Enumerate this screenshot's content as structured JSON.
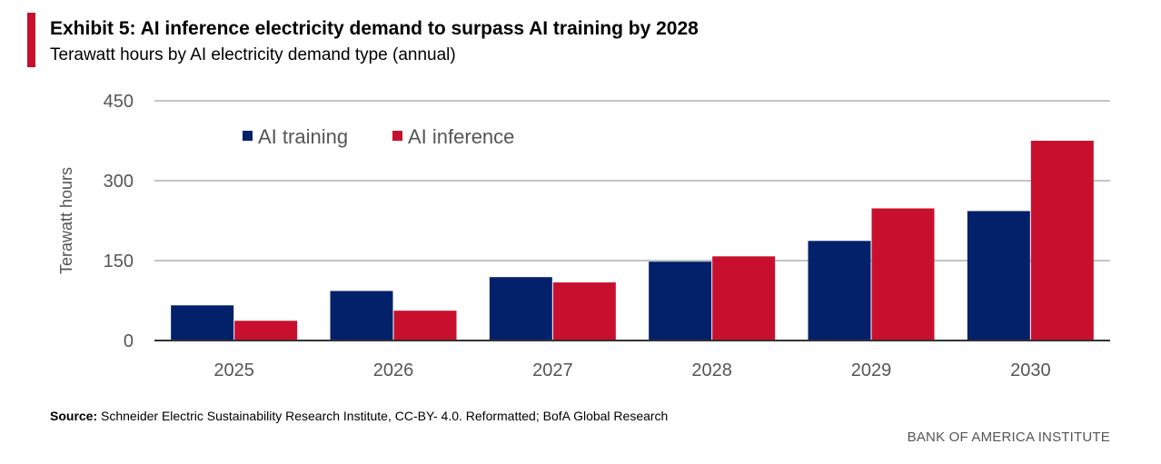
{
  "header": {
    "title": "Exhibit 5: AI inference electricity demand to surpass AI training by 2028",
    "subtitle": "Terawatt hours by AI electricity demand type (annual)"
  },
  "chart_data": {
    "type": "bar",
    "ylabel": "Terawatt hours",
    "ylim": [
      0,
      450
    ],
    "yticks": [
      "0",
      "150",
      "300",
      "450"
    ],
    "grid": true,
    "legend": "top-left",
    "categories": [
      "2025",
      "2026",
      "2027",
      "2028",
      "2029",
      "2030"
    ],
    "series": [
      {
        "name": "AI training",
        "color": "#03216a",
        "values": [
          66,
          93,
          119,
          148,
          187,
          243
        ]
      },
      {
        "name": "AI inference",
        "color": "#c8102e",
        "values": [
          37,
          56,
          109,
          158,
          248,
          375
        ]
      }
    ]
  },
  "footer": {
    "source_label": "Source:",
    "source_text": " Schneider Electric Sustainability Research Institute, CC-BY- 4.0. Reformatted; BofA Global Research",
    "brand": "BANK OF AMERICA INSTITUTE"
  }
}
